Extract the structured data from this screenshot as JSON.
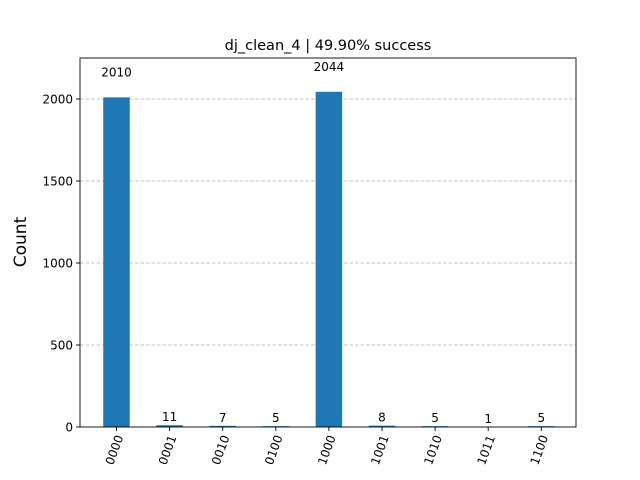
{
  "chart_data": {
    "type": "bar",
    "title": "dj_clean_4 | 49.90% success",
    "ylabel": "Count",
    "xlabel": "",
    "categories": [
      "0000",
      "0001",
      "0010",
      "0100",
      "1000",
      "1001",
      "1010",
      "1011",
      "1100"
    ],
    "values": [
      2010,
      11,
      7,
      5,
      2044,
      8,
      5,
      1,
      5
    ],
    "data_labels": [
      "2010",
      "11",
      "7",
      "5",
      "2044",
      "8",
      "5",
      "1",
      "5"
    ],
    "ylim": [
      0,
      2250
    ],
    "yticks": [
      0,
      500,
      1000,
      1500,
      2000
    ],
    "ytick_labels": [
      "0",
      "500",
      "1000",
      "1500",
      "2000"
    ],
    "grid": "y-dashed",
    "bar_color": "#1f77b4",
    "x_tick_rotation": 70
  }
}
